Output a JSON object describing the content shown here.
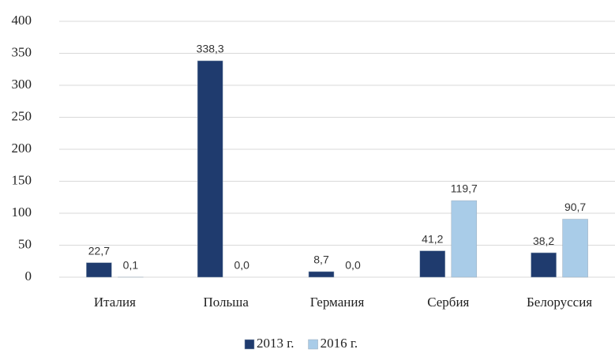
{
  "chart_data": {
    "type": "bar",
    "categories": [
      "Италия",
      "Польша",
      "Германия",
      "Сербия",
      "Белоруссия"
    ],
    "series": [
      {
        "name": "2013 г.",
        "color": "#1f3b6e",
        "values": [
          22.7,
          338.3,
          8.7,
          41.2,
          38.2
        ],
        "value_labels": [
          "22,7",
          "338,3",
          "8,7",
          "41,2",
          "38,2"
        ]
      },
      {
        "name": "2016 г.",
        "color": "#a9cce8",
        "values": [
          0.1,
          0.0,
          0.0,
          119.7,
          90.7
        ],
        "value_labels": [
          "0,1",
          "0,0",
          "0,0",
          "119,7",
          "90,7"
        ]
      }
    ],
    "ylim": [
      0,
      400
    ],
    "yticks": [
      0,
      50,
      100,
      150,
      200,
      250,
      300,
      350,
      400
    ],
    "grid": true,
    "legend": "bottom"
  }
}
